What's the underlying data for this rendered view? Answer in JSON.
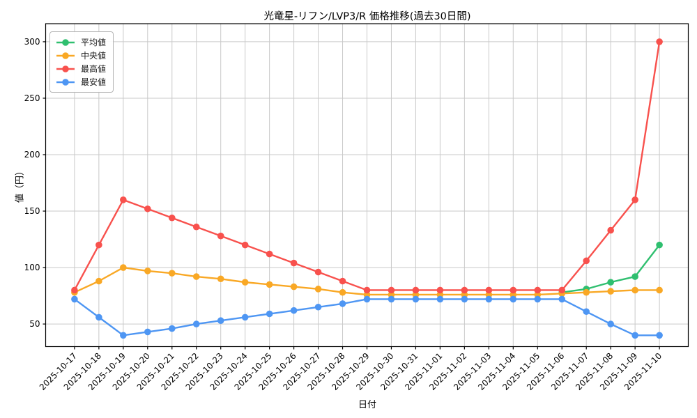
{
  "chart_data": {
    "type": "line",
    "title": "光竜星-リフン/LVP3/R 価格推移(過去30日間)",
    "xlabel": "日付",
    "ylabel": "値（円）",
    "x": [
      "2025-10-17",
      "2025-10-18",
      "2025-10-19",
      "2025-10-20",
      "2025-10-21",
      "2025-10-22",
      "2025-10-23",
      "2025-10-24",
      "2025-10-25",
      "2025-10-26",
      "2025-10-27",
      "2025-10-28",
      "2025-10-29",
      "2025-10-30",
      "2025-10-31",
      "2025-11-01",
      "2025-11-02",
      "2025-11-03",
      "2025-11-04",
      "2025-11-05",
      "2025-11-06",
      "2025-11-07",
      "2025-11-08",
      "2025-11-09",
      "2025-11-10"
    ],
    "series": [
      {
        "name": "平均値",
        "color": "#2fbf6f",
        "values": [
          null,
          null,
          null,
          null,
          null,
          null,
          null,
          null,
          null,
          null,
          null,
          null,
          null,
          null,
          null,
          null,
          null,
          null,
          null,
          null,
          78,
          81,
          87,
          92,
          120
        ]
      },
      {
        "name": "中央値",
        "color": "#f9a825",
        "values": [
          78,
          88,
          100,
          97,
          95,
          92,
          90,
          87,
          85,
          83,
          81,
          78,
          76,
          76,
          76,
          76,
          76,
          76,
          76,
          76,
          77,
          78,
          79,
          80,
          80
        ]
      },
      {
        "name": "最高値",
        "color": "#f8514d",
        "values": [
          80,
          120,
          160,
          152,
          144,
          136,
          128,
          120,
          112,
          104,
          96,
          88,
          80,
          80,
          80,
          80,
          80,
          80,
          80,
          80,
          80,
          106,
          133,
          160,
          300
        ]
      },
      {
        "name": "最安値",
        "color": "#4e96f3",
        "values": [
          72,
          56,
          40,
          43,
          46,
          50,
          53,
          56,
          59,
          62,
          65,
          68,
          72,
          72,
          72,
          72,
          72,
          72,
          72,
          72,
          72,
          61,
          50,
          40,
          40
        ]
      }
    ],
    "yticks": [
      50,
      100,
      150,
      200,
      250,
      300
    ],
    "ylim": [
      30,
      316
    ],
    "grid": true,
    "grid_color": "#c9c9c9",
    "legend_position": "upper left",
    "x_tick_rotation": 45
  }
}
